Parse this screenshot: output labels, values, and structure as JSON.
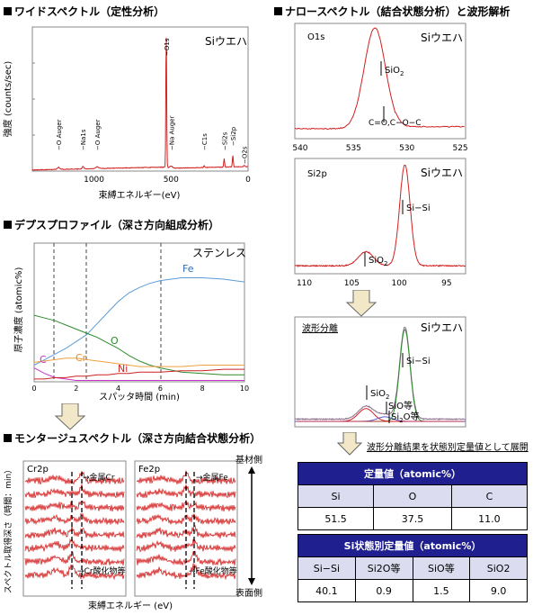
{
  "sections": {
    "wide": "ワイドスペクトル（定性分析）",
    "depth": "デプスプロファイル（深さ方向組成分析）",
    "montage": "モンタージュスペクトル（深さ方向結合状態分析）",
    "narrow": "ナロースペクトル（結合状態分析）と波形解析"
  },
  "wide_chart": {
    "sample": "Siウエハ",
    "ylabel": "強度 (counts/sec)",
    "xlabel": "束縛エネルギー(eV)",
    "xticks": [
      "1000",
      "500",
      "0"
    ],
    "peaks": [
      "O Auger",
      "Na1s",
      "O Auger",
      "O1s",
      "Na Auger",
      "C1s",
      "Si2s",
      "Si2p",
      "O2s"
    ]
  },
  "depth_chart": {
    "sample": "ステンレス",
    "ylabel": "原子濃度 (atomic%)",
    "xlabel": "スパッタ時間 (min)",
    "xticks": [
      "0",
      "2",
      "4",
      "6",
      "8",
      "10"
    ],
    "labels": {
      "Fe": "Fe",
      "O": "O",
      "Cr": "Cr",
      "C": "C",
      "Ni": "Ni"
    },
    "colors": {
      "Fe": "#5b9bd5",
      "O": "#2e8b2e",
      "Cr": "#f0a040",
      "C": "#cc33cc",
      "Ni": "#cc2222"
    }
  },
  "montage_chart": {
    "ylabel": "スペクトル取得深さ（時間：min）",
    "xlabel": "束縛エネルギー (eV)",
    "cr_title": "Cr2p",
    "fe_title": "Fe2p",
    "cr_metal": "→金属Cr",
    "cr_oxide": "→Cr酸化物等",
    "fe_metal": "→金属Fe",
    "fe_oxide": "→Fe酸化物等",
    "base_side": "基材側",
    "surface_side": "表面側"
  },
  "narrow_o1s": {
    "title": "O1s",
    "sample": "Siウエハ",
    "label_sio2": "SiO",
    "label_sio2_sub": "2",
    "label_bond": "C=O,C−O−C",
    "xticks": [
      "540",
      "535",
      "530",
      "525"
    ]
  },
  "narrow_si2p": {
    "title": "Si2p",
    "sample": "Siウエハ",
    "label_sisi": "Si−Si",
    "label_sio2": "SiO",
    "label_sio2_sub": "2",
    "xticks": [
      "110",
      "105",
      "100",
      "95"
    ]
  },
  "fit_chart": {
    "title": "波形分離",
    "sample": "Siウエハ",
    "label_sisi": "Si−Si",
    "label_sio2": "SiO",
    "label_sio2_sub": "2",
    "label_sio": "SiO等",
    "label_si2o": "Si",
    "label_si2o_sub": "2",
    "label_si2o_end": "O等"
  },
  "arrow_note": "波形分離結果を状態別定量値として展開",
  "quant_table": {
    "title": "定量値（atomic%）",
    "headers": [
      "Si",
      "O",
      "C"
    ],
    "values": [
      "51.5",
      "37.5",
      "11.0"
    ]
  },
  "state_table": {
    "title": "Si状態別定量値（atomic%）",
    "headers": [
      "Si−Si",
      "Si2O等",
      "SiO等",
      "SiO2"
    ],
    "values": [
      "40.1",
      "0.9",
      "1.5",
      "9.0"
    ]
  },
  "chart_data": [
    {
      "type": "line",
      "title": "ワイドスペクトル（定性分析）",
      "xlabel": "束縛エネルギー(eV)",
      "ylabel": "強度 (counts/sec)",
      "xlim": [
        1400,
        0
      ],
      "x": [
        1400,
        1250,
        1230,
        1200,
        1100,
        1072,
        1000,
        980,
        800,
        600,
        540,
        531,
        520,
        500,
        400,
        300,
        285,
        250,
        200,
        155,
        100,
        99,
        50,
        25,
        0
      ],
      "values": [
        2000,
        2500,
        4000,
        3500,
        5000,
        7000,
        6500,
        9000,
        9500,
        11000,
        14000,
        345000,
        16000,
        13000,
        11500,
        9500,
        14000,
        9000,
        8000,
        30000,
        12000,
        40000,
        8000,
        6000,
        4000
      ]
    },
    {
      "type": "line",
      "title": "デプスプロファイル（深さ方向組成分析）",
      "xlabel": "スパッタ時間 (min)",
      "ylabel": "原子濃度 (atomic%)",
      "xlim": [
        0,
        10
      ],
      "ylim": [
        0,
        100
      ],
      "x": [
        0,
        0.5,
        1,
        1.5,
        2,
        2.5,
        3,
        3.5,
        4,
        4.5,
        5,
        5.5,
        6,
        7,
        8,
        9,
        10
      ],
      "series": [
        {
          "name": "Fe",
          "values": [
            12,
            16,
            20,
            24,
            29,
            34,
            42,
            50,
            58,
            64,
            68,
            71,
            73,
            75,
            75,
            74,
            72
          ]
        },
        {
          "name": "O",
          "values": [
            48,
            46,
            44,
            41,
            38,
            35,
            32,
            28,
            24,
            19,
            15,
            12,
            10,
            7,
            6,
            5,
            5
          ]
        },
        {
          "name": "Cr",
          "values": [
            14,
            15,
            16,
            17,
            17,
            16,
            15,
            14,
            13,
            12,
            11,
            11,
            11,
            11,
            12,
            12,
            12
          ]
        },
        {
          "name": "C",
          "values": [
            10,
            6,
            3,
            2,
            1,
            1,
            1,
            1,
            1,
            1,
            1,
            1,
            1,
            1,
            1,
            1,
            1
          ]
        },
        {
          "name": "Ni",
          "values": [
            2,
            2,
            3,
            3,
            4,
            4,
            5,
            5,
            6,
            6,
            7,
            7,
            7,
            8,
            8,
            9,
            9
          ]
        }
      ]
    },
    {
      "type": "line",
      "title": "O1s",
      "xlim": [
        540,
        525
      ],
      "x": [
        540,
        539,
        538,
        537,
        536,
        535,
        534,
        533.5,
        533,
        532.5,
        532,
        531,
        530,
        529,
        528,
        527,
        526,
        525
      ],
      "values": [
        2,
        2,
        3,
        5,
        15,
        50,
        80,
        95,
        100,
        92,
        70,
        25,
        10,
        7,
        6,
        6,
        5,
        5
      ]
    },
    {
      "type": "line",
      "title": "Si2p",
      "xlim": [
        110,
        95
      ],
      "x": [
        110,
        108,
        106,
        105,
        104,
        103.5,
        103,
        102,
        101,
        100,
        99.5,
        99,
        98.5,
        98,
        97,
        96,
        95
      ],
      "values": [
        2,
        3,
        5,
        8,
        14,
        16,
        14,
        10,
        25,
        75,
        100,
        85,
        40,
        12,
        4,
        2,
        2
      ]
    }
  ]
}
